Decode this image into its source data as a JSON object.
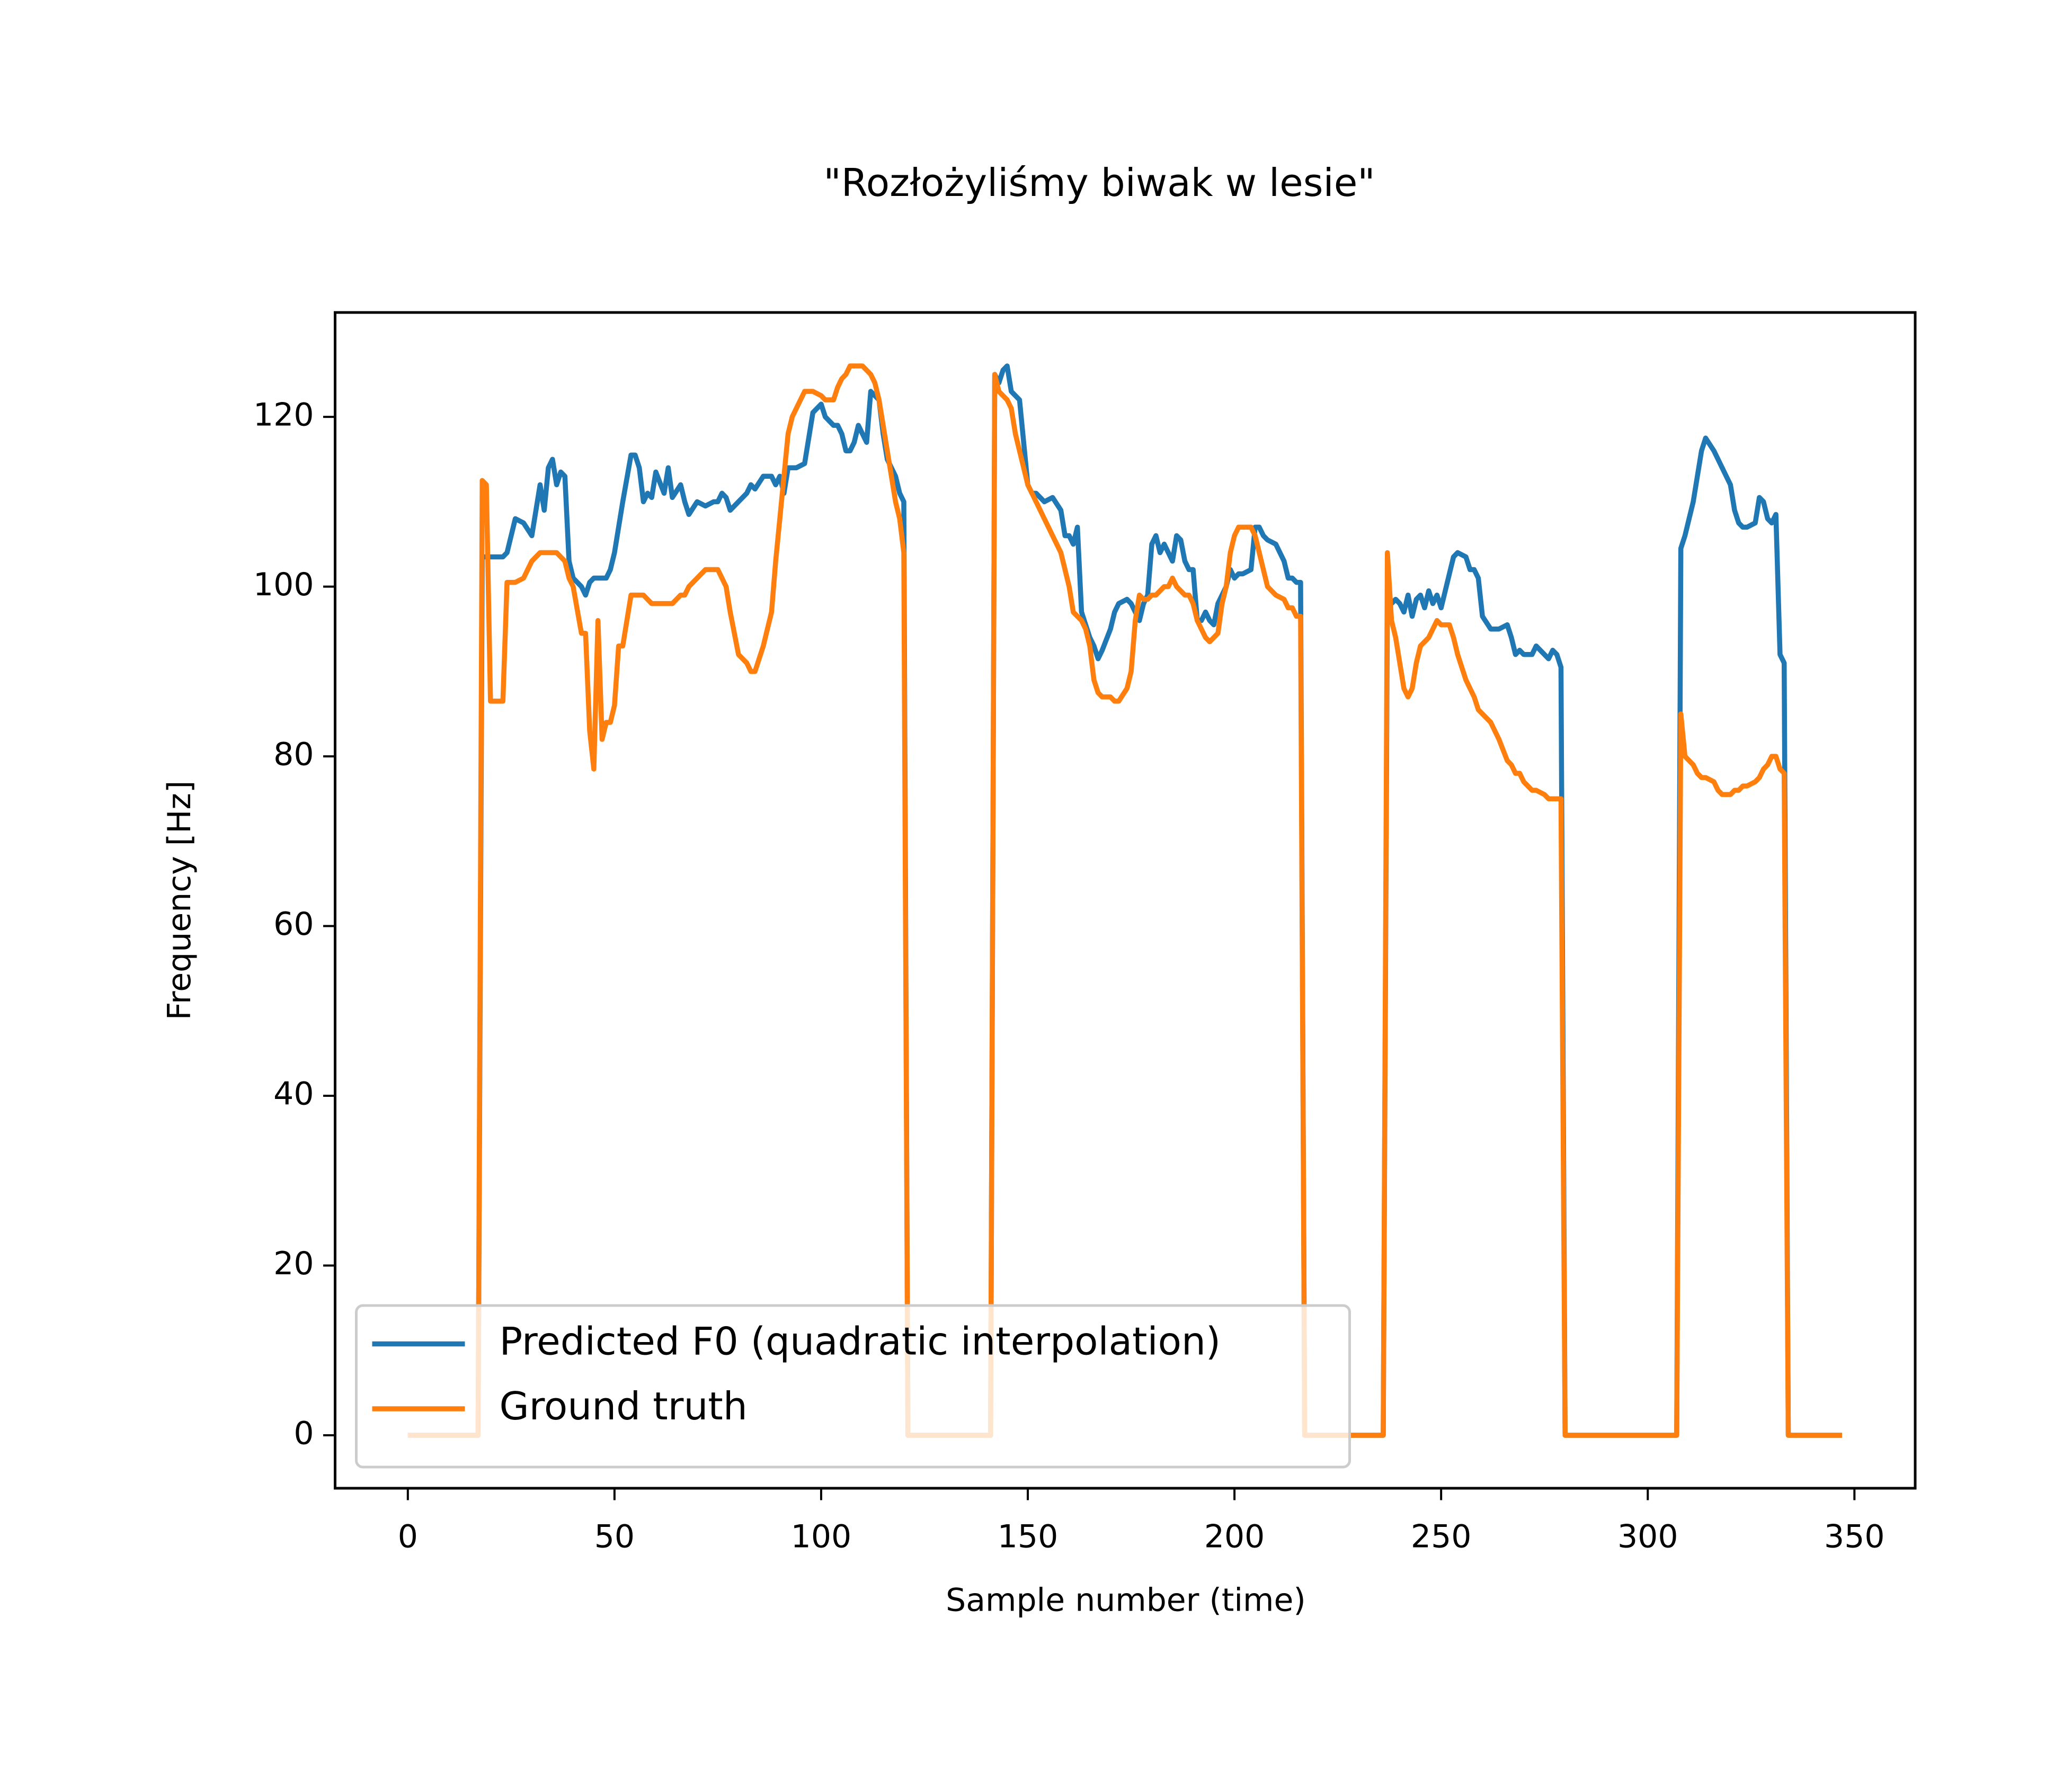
{
  "chart_data": {
    "type": "line",
    "title": "\"Rozłożyliśmy biwak w lesie\"",
    "xlabel": "Sample number (time)",
    "ylabel": "Frequency [Hz]",
    "x": [
      0,
      17,
      18,
      19,
      20,
      23,
      24,
      26,
      28,
      30,
      32,
      33,
      34,
      35,
      36,
      37,
      38,
      39,
      40,
      42,
      43,
      44,
      45,
      46,
      47,
      48,
      49,
      50,
      51,
      52,
      54,
      55,
      56,
      57,
      58,
      59,
      60,
      62,
      63,
      64,
      66,
      67,
      68,
      70,
      72,
      74,
      75,
      76,
      77,
      78,
      80,
      82,
      83,
      84,
      86,
      88,
      89,
      90,
      91,
      92,
      93,
      94,
      96,
      98,
      100,
      101,
      103,
      104,
      105,
      106,
      107,
      108,
      109,
      110,
      111,
      112,
      113,
      114,
      115,
      116,
      117,
      118,
      119,
      120,
      121,
      141,
      142,
      143,
      144,
      145,
      146,
      147,
      148,
      149,
      150,
      151,
      152,
      154,
      156,
      158,
      159,
      160,
      161,
      162,
      163,
      164,
      165,
      166,
      167,
      168,
      170,
      171,
      172,
      174,
      175,
      176,
      177,
      178,
      179,
      180,
      181,
      182,
      183,
      184,
      185,
      186,
      187,
      188,
      189,
      190,
      191,
      192,
      193,
      194,
      195,
      196,
      197,
      198,
      199,
      200,
      201,
      202,
      204,
      205,
      206,
      207,
      208,
      210,
      212,
      213,
      214,
      215,
      216,
      217,
      236,
      237,
      238,
      239,
      240,
      241,
      242,
      243,
      244,
      245,
      246,
      247,
      248,
      249,
      250,
      251,
      252,
      253,
      254,
      256,
      257,
      258,
      259,
      260,
      262,
      264,
      266,
      267,
      268,
      269,
      270,
      272,
      273,
      275,
      276,
      277,
      278,
      279,
      280,
      307,
      308,
      309,
      310,
      311,
      312,
      313,
      314,
      316,
      317,
      318,
      319,
      320,
      321,
      322,
      323,
      324,
      326,
      327,
      328,
      329,
      330,
      331,
      332,
      333,
      334,
      347
    ],
    "series": [
      {
        "name": "Predicted F0 (quadratic interpolation)",
        "color": "#1f77b4",
        "values": [
          0,
          0,
          103.5,
          103.5,
          103.5,
          103.5,
          104,
          108,
          107.5,
          106,
          112,
          109,
          114,
          115,
          112,
          113.5,
          113,
          103,
          101,
          100,
          99,
          100.5,
          101,
          101,
          101,
          101,
          102,
          104,
          107,
          110,
          115.5,
          115.5,
          114,
          110,
          111,
          110.5,
          113.5,
          111,
          114,
          110.5,
          112,
          110,
          108.5,
          110,
          109.5,
          110,
          110,
          111,
          110.5,
          109,
          110,
          111,
          112,
          111.5,
          113,
          113,
          112,
          113,
          111,
          114,
          114,
          114,
          114.5,
          120.5,
          121.5,
          120,
          119,
          119,
          118,
          116,
          116,
          117,
          119,
          118,
          117,
          123,
          122.5,
          122,
          118,
          115,
          114,
          113,
          111,
          110,
          0,
          0,
          125,
          124,
          125.5,
          126,
          123,
          122.5,
          122,
          117,
          112,
          111,
          111,
          110,
          110.5,
          109,
          106,
          106,
          105,
          107,
          97,
          95.5,
          94,
          93,
          91.5,
          92.5,
          95,
          97,
          98,
          98.5,
          98,
          97,
          96,
          98,
          99,
          105,
          106,
          104,
          105,
          104,
          103,
          106,
          105.5,
          103,
          102,
          102,
          96,
          96,
          97,
          96,
          95.5,
          98,
          99,
          100,
          102,
          101,
          101.5,
          101.5,
          102,
          107,
          107,
          106,
          105.5,
          105,
          103,
          101,
          101,
          100.5,
          100.5,
          0,
          0,
          98.5,
          98,
          98.5,
          98,
          97,
          99,
          96.5,
          98.5,
          99,
          97.5,
          99.5,
          98,
          99,
          97.5,
          99.5,
          101.5,
          103.5,
          104,
          103.5,
          102,
          102,
          101,
          96.5,
          95,
          95,
          95.5,
          94,
          92,
          92.5,
          92,
          92,
          93,
          92,
          91.5,
          92.5,
          92,
          90.5,
          0,
          0,
          104.5,
          106,
          108,
          110,
          113,
          116,
          117.5,
          116,
          115,
          114,
          113,
          112,
          109,
          107.5,
          107,
          107,
          107.5,
          110.5,
          110,
          108,
          107.5,
          108.5,
          92,
          91,
          0,
          0
        ]
      },
      {
        "name": "Ground truth",
        "color": "#ff7f0e",
        "values": [
          0,
          0,
          112.5,
          112,
          86.5,
          86.5,
          100.5,
          100.5,
          101,
          103,
          104,
          104,
          104,
          104,
          104,
          103.5,
          103,
          101,
          100,
          94.5,
          94.5,
          83,
          78.5,
          96,
          82,
          84,
          84,
          86,
          93,
          93,
          99,
          99,
          99,
          99,
          98.5,
          98,
          98,
          98,
          98,
          98,
          99,
          99,
          100,
          101,
          102,
          102,
          102,
          101,
          100,
          97,
          92,
          91,
          90,
          90,
          93,
          97,
          103,
          108,
          113,
          118,
          120,
          121,
          123,
          123,
          122.5,
          122,
          122,
          123.5,
          124.5,
          125,
          126,
          126,
          126,
          126,
          125.5,
          125,
          124,
          122,
          119,
          116,
          113,
          110,
          108,
          104,
          0,
          0,
          125,
          123,
          122.5,
          122,
          121,
          118,
          116,
          114,
          112,
          111,
          110,
          108,
          106,
          104,
          102,
          100,
          97,
          96.5,
          96,
          95,
          93,
          89,
          87.5,
          87,
          87,
          86.5,
          86.5,
          88,
          90,
          96,
          99,
          98.5,
          98.5,
          99,
          99,
          99.5,
          100,
          100,
          101,
          100,
          99.5,
          99,
          99,
          98,
          96,
          95,
          94,
          93.5,
          94,
          94.5,
          98,
          100,
          104,
          106,
          107,
          107,
          107,
          106,
          104,
          102,
          100,
          99,
          98.5,
          97.5,
          97.5,
          96.5,
          96.5,
          0,
          0,
          104,
          96,
          94,
          91,
          88,
          87,
          88,
          91,
          93,
          93.5,
          94,
          95,
          96,
          95.5,
          95.5,
          95.5,
          94,
          92,
          89,
          88,
          87,
          85.5,
          85,
          84,
          82,
          79.5,
          79,
          78,
          78,
          77,
          76,
          76,
          75.5,
          75,
          75,
          75,
          75,
          0,
          0,
          85,
          80,
          79.5,
          79,
          78,
          77.5,
          77.5,
          77,
          76,
          75.5,
          75.5,
          75.5,
          76,
          76,
          76.5,
          76.5,
          77,
          77.5,
          78.5,
          79,
          80,
          80,
          78.5,
          78,
          0,
          0
        ]
      }
    ],
    "xlim": [
      -17.6,
      364.7
    ],
    "ylim": [
      -6.24,
      132.3
    ],
    "xticks": [
      0,
      50,
      100,
      150,
      200,
      250,
      300,
      350
    ],
    "yticks": [
      0,
      20,
      40,
      60,
      80,
      100,
      120
    ],
    "legend": "lower left"
  }
}
